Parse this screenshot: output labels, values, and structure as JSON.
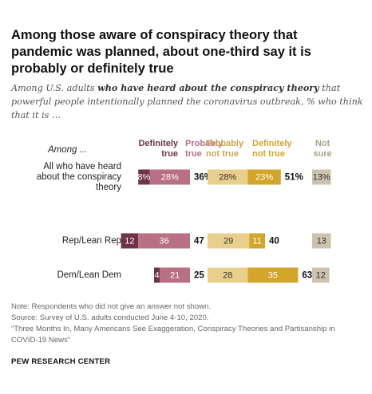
{
  "title": "Among those aware of conspiracy theory that pandemic was planned, about one-third say it is probably or definitely true",
  "subtitle": {
    "before": "Among U.S. adults ",
    "emph": "who have heard about the conspiracy theory",
    "after": " that powerful people intentionally planned the coronavirus outbreak, % who think that it is …"
  },
  "footer": {
    "note": "Note: Respondents who did not give an answer not shown.",
    "source": "Source: Survey of U.S. adults conducted June 4-10, 2020.",
    "report": "“Three Months In, Many Americans See Exaggeration, Conspiracy Theories and Partisanship in COVID-19 News”",
    "brand": "PEW RESEARCH CENTER"
  },
  "colors": {
    "definitely_true": "#6f3349",
    "probably_true": "#b96f84",
    "probably_not_true": "#e8cf8b",
    "definitely_not_true": "#d3a52b",
    "not_sure": "#cdc3ad"
  },
  "chart_data": {
    "type": "bar",
    "stacked": true,
    "row_header": "Among ...",
    "headers": {
      "definitely_true": [
        "Definitely",
        "true"
      ],
      "probably_true": [
        "Probably",
        "true"
      ],
      "probably_not_true": [
        "Probably",
        "not true"
      ],
      "definitely_not_true": [
        "Definitely",
        "not true"
      ],
      "not_sure": [
        "Not",
        "sure"
      ]
    },
    "categories": [
      [
        "All who have heard",
        "about the conspiracy",
        "theory"
      ],
      [
        "Rep/Lean Rep"
      ],
      [
        "Dem/Lean Dem"
      ]
    ],
    "series": [
      {
        "key": "definitely_true",
        "name": "Definitely true",
        "values": [
          8,
          12,
          4
        ],
        "labels": [
          "8%",
          "12",
          "4"
        ]
      },
      {
        "key": "probably_true",
        "name": "Probably true",
        "values": [
          28,
          36,
          21
        ],
        "labels": [
          "28%",
          "36",
          "21"
        ]
      },
      {
        "key": "probably_not_true",
        "name": "Probably not true",
        "values": [
          28,
          29,
          28
        ],
        "labels": [
          "28%",
          "29",
          "28"
        ]
      },
      {
        "key": "definitely_not_true",
        "name": "Definitely not true",
        "values": [
          23,
          11,
          35
        ],
        "labels": [
          "23%",
          "11",
          "35"
        ]
      },
      {
        "key": "not_sure",
        "name": "Not sure",
        "values": [
          13,
          13,
          12
        ],
        "labels": [
          "13%",
          "13",
          "12"
        ]
      }
    ],
    "net_true": {
      "values": [
        36,
        47,
        25
      ],
      "labels": [
        "36%",
        "47",
        "25"
      ]
    },
    "net_not_true": {
      "values": [
        51,
        40,
        63
      ],
      "labels": [
        "51%",
        "40",
        "63"
      ]
    }
  }
}
